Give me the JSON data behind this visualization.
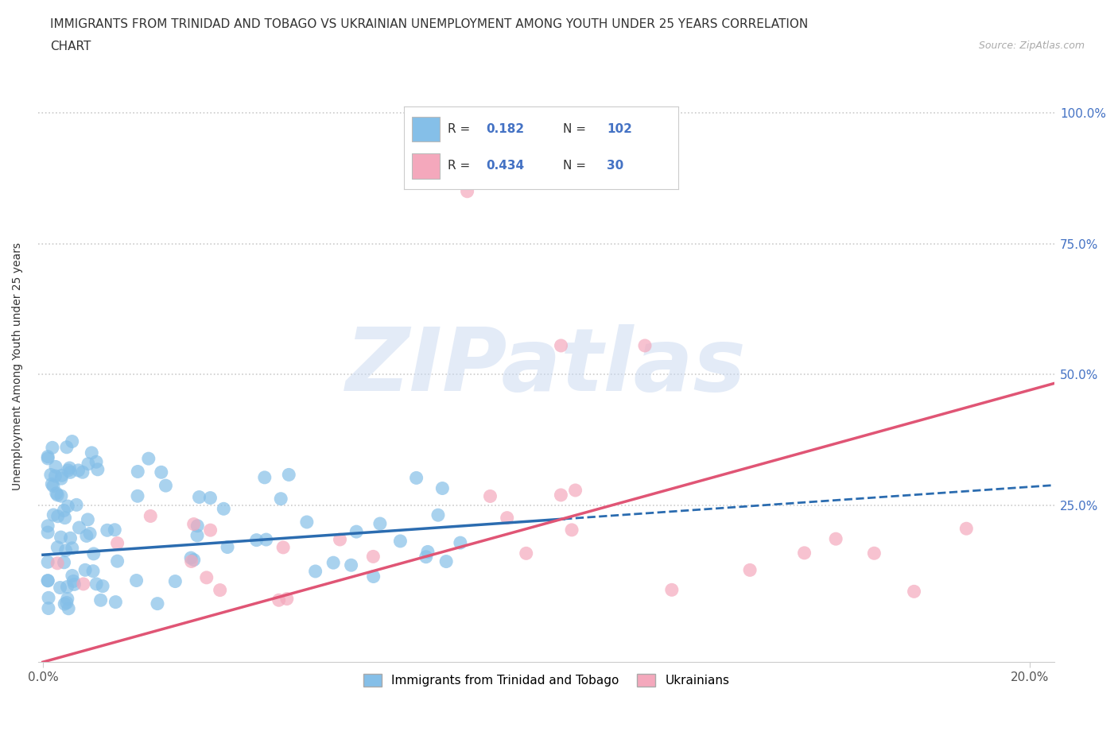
{
  "title_line1": "IMMIGRANTS FROM TRINIDAD AND TOBAGO VS UKRAINIAN UNEMPLOYMENT AMONG YOUTH UNDER 25 YEARS CORRELATION",
  "title_line2": "CHART",
  "source_text": "Source: ZipAtlas.com",
  "ylabel": "Unemployment Among Youth under 25 years",
  "watermark": "ZIPatlas",
  "xlim": [
    -0.001,
    0.205
  ],
  "ylim": [
    -0.05,
    1.08
  ],
  "xticks": [
    0.0,
    0.2
  ],
  "xticklabels": [
    "0.0%",
    "20.0%"
  ],
  "yticks": [
    0.25,
    0.5,
    0.75,
    1.0
  ],
  "yticklabels": [
    "25.0%",
    "50.0%",
    "75.0%",
    "100.0%"
  ],
  "blue_color": "#85bfe8",
  "pink_color": "#f4a8bc",
  "blue_line_color": "#2b6cb0",
  "pink_line_color": "#e05575",
  "blue_R": "0.182",
  "blue_N": "102",
  "pink_R": "0.434",
  "pink_N": "30",
  "legend_label_blue": "Immigrants from Trinidad and Tobago",
  "legend_label_pink": "Ukrainians",
  "title_fontsize": 11,
  "axis_label_fontsize": 10,
  "tick_fontsize": 11,
  "grid_color": "#cccccc",
  "background_color": "#ffffff",
  "label_color": "#4472c4",
  "blue_intercept": 0.155,
  "blue_slope": 0.65,
  "pink_intercept": -0.05,
  "pink_slope": 2.6
}
